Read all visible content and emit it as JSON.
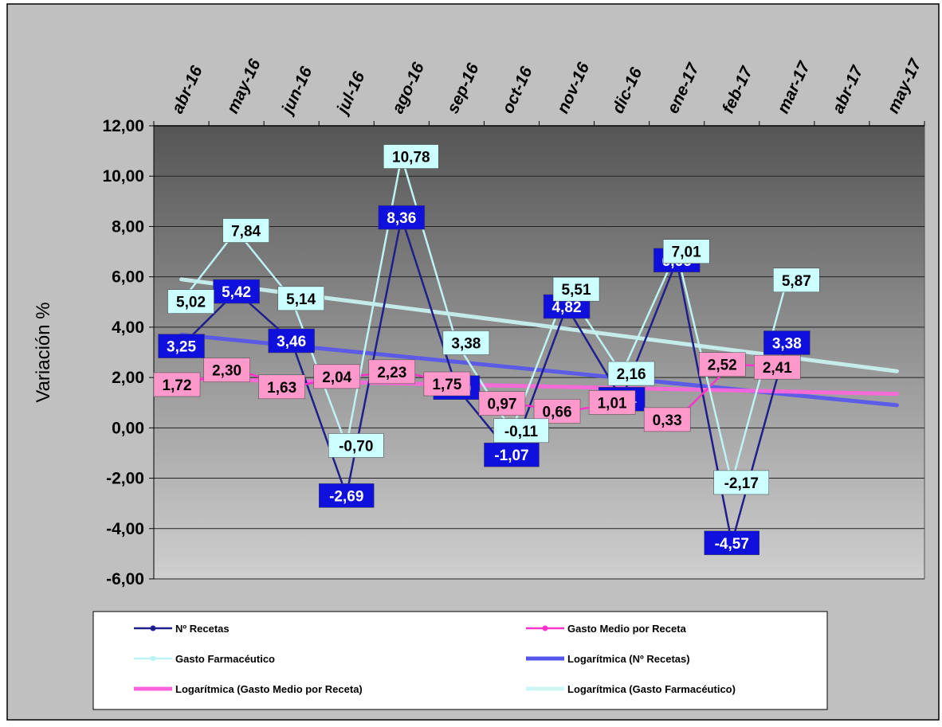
{
  "chart_data": {
    "type": "line",
    "title": "",
    "xlabel": "",
    "ylabel": "Variación %",
    "ylim": [
      -6,
      12
    ],
    "yticks": [
      12,
      10,
      8,
      6,
      4,
      2,
      0,
      -2,
      -4,
      -6
    ],
    "ytick_labels": [
      "12,00",
      "10,00",
      "8,00",
      "6,00",
      "4,00",
      "2,00",
      "0,00",
      "-2,00",
      "-4,00",
      "-6,00"
    ],
    "categories": [
      "abr-16",
      "may-16",
      "jun-16",
      "jul-16",
      "ago-16",
      "sep-16",
      "oct-16",
      "nov-16",
      "dic-16",
      "ene-17",
      "feb-17",
      "mar-17",
      "abr-17",
      "may-17"
    ],
    "grid": true,
    "legend_position": "bottom",
    "series": [
      {
        "name": "Nº Recetas",
        "color": "#1f1f8c",
        "label_bg": "#1010dd",
        "label_fg": "#ffffff",
        "values": [
          3.25,
          5.42,
          3.46,
          -2.69,
          8.36,
          1.6,
          -1.07,
          4.82,
          1.14,
          6.66,
          -4.57,
          3.38,
          null,
          null
        ],
        "labels": [
          "3,25",
          "5,42",
          "3,46",
          "-2,69",
          "8,36",
          "1,60",
          "-1,07",
          "4,82",
          "1,14",
          "6,66",
          "-4,57",
          "3,38",
          "",
          ""
        ]
      },
      {
        "name": "Gasto Medio por Receta",
        "color": "#ff33cc",
        "label_bg": "#ff99cc",
        "label_fg": "#000000",
        "values": [
          1.72,
          2.3,
          1.63,
          2.04,
          2.23,
          1.75,
          0.97,
          0.66,
          1.01,
          0.33,
          2.52,
          2.41,
          null,
          null
        ],
        "labels": [
          "1,72",
          "2,30",
          "1,63",
          "2,04",
          "2,23",
          "1,75",
          "0,97",
          "0,66",
          "1,01",
          "0,33",
          "2,52",
          "2,41",
          "",
          ""
        ]
      },
      {
        "name": "Gasto Farmacéutico",
        "color": "#bff2f2",
        "label_bg": "#ccffff",
        "label_fg": "#000000",
        "values": [
          5.02,
          7.84,
          5.14,
          -0.7,
          10.78,
          3.38,
          -0.11,
          5.51,
          2.16,
          7.01,
          -2.17,
          5.87,
          null,
          null
        ],
        "labels": [
          "5,02",
          "7,84",
          "5,14",
          "-0,70",
          "10,78",
          "3,38",
          "-0,11",
          "5,51",
          "2,16",
          "7,01",
          "-2,17",
          "5,87",
          "",
          ""
        ]
      }
    ],
    "trendlines": [
      {
        "name": "Logarítmica (Nº Recetas)",
        "color": "#5555ee",
        "start": 3.7,
        "end": 0.9
      },
      {
        "name": "Logarítmica (Gasto Medio por Receta)",
        "color": "#ff66dd",
        "start": 1.95,
        "end": 1.35
      },
      {
        "name": "Logarítmica (Gasto Farmacéutico)",
        "color": "#ccf5f5",
        "start": 5.9,
        "end": 2.25
      }
    ],
    "legend": [
      {
        "label": "Nº Recetas",
        "kind": "series",
        "color": "#1f1f8c"
      },
      {
        "label": "Gasto Medio por Receta",
        "kind": "series",
        "color": "#ff33cc"
      },
      {
        "label": "Gasto Farmacéutico",
        "kind": "series",
        "color": "#bff2f2"
      },
      {
        "label": "Logarítmica (Nº Recetas)",
        "kind": "trend",
        "color": "#5555ee"
      },
      {
        "label": "Logarítmica (Gasto Medio por Receta)",
        "kind": "trend",
        "color": "#ff66dd"
      },
      {
        "label": "Logarítmica (Gasto Farmacéutico)",
        "kind": "trend",
        "color": "#ccf5f5"
      }
    ]
  }
}
